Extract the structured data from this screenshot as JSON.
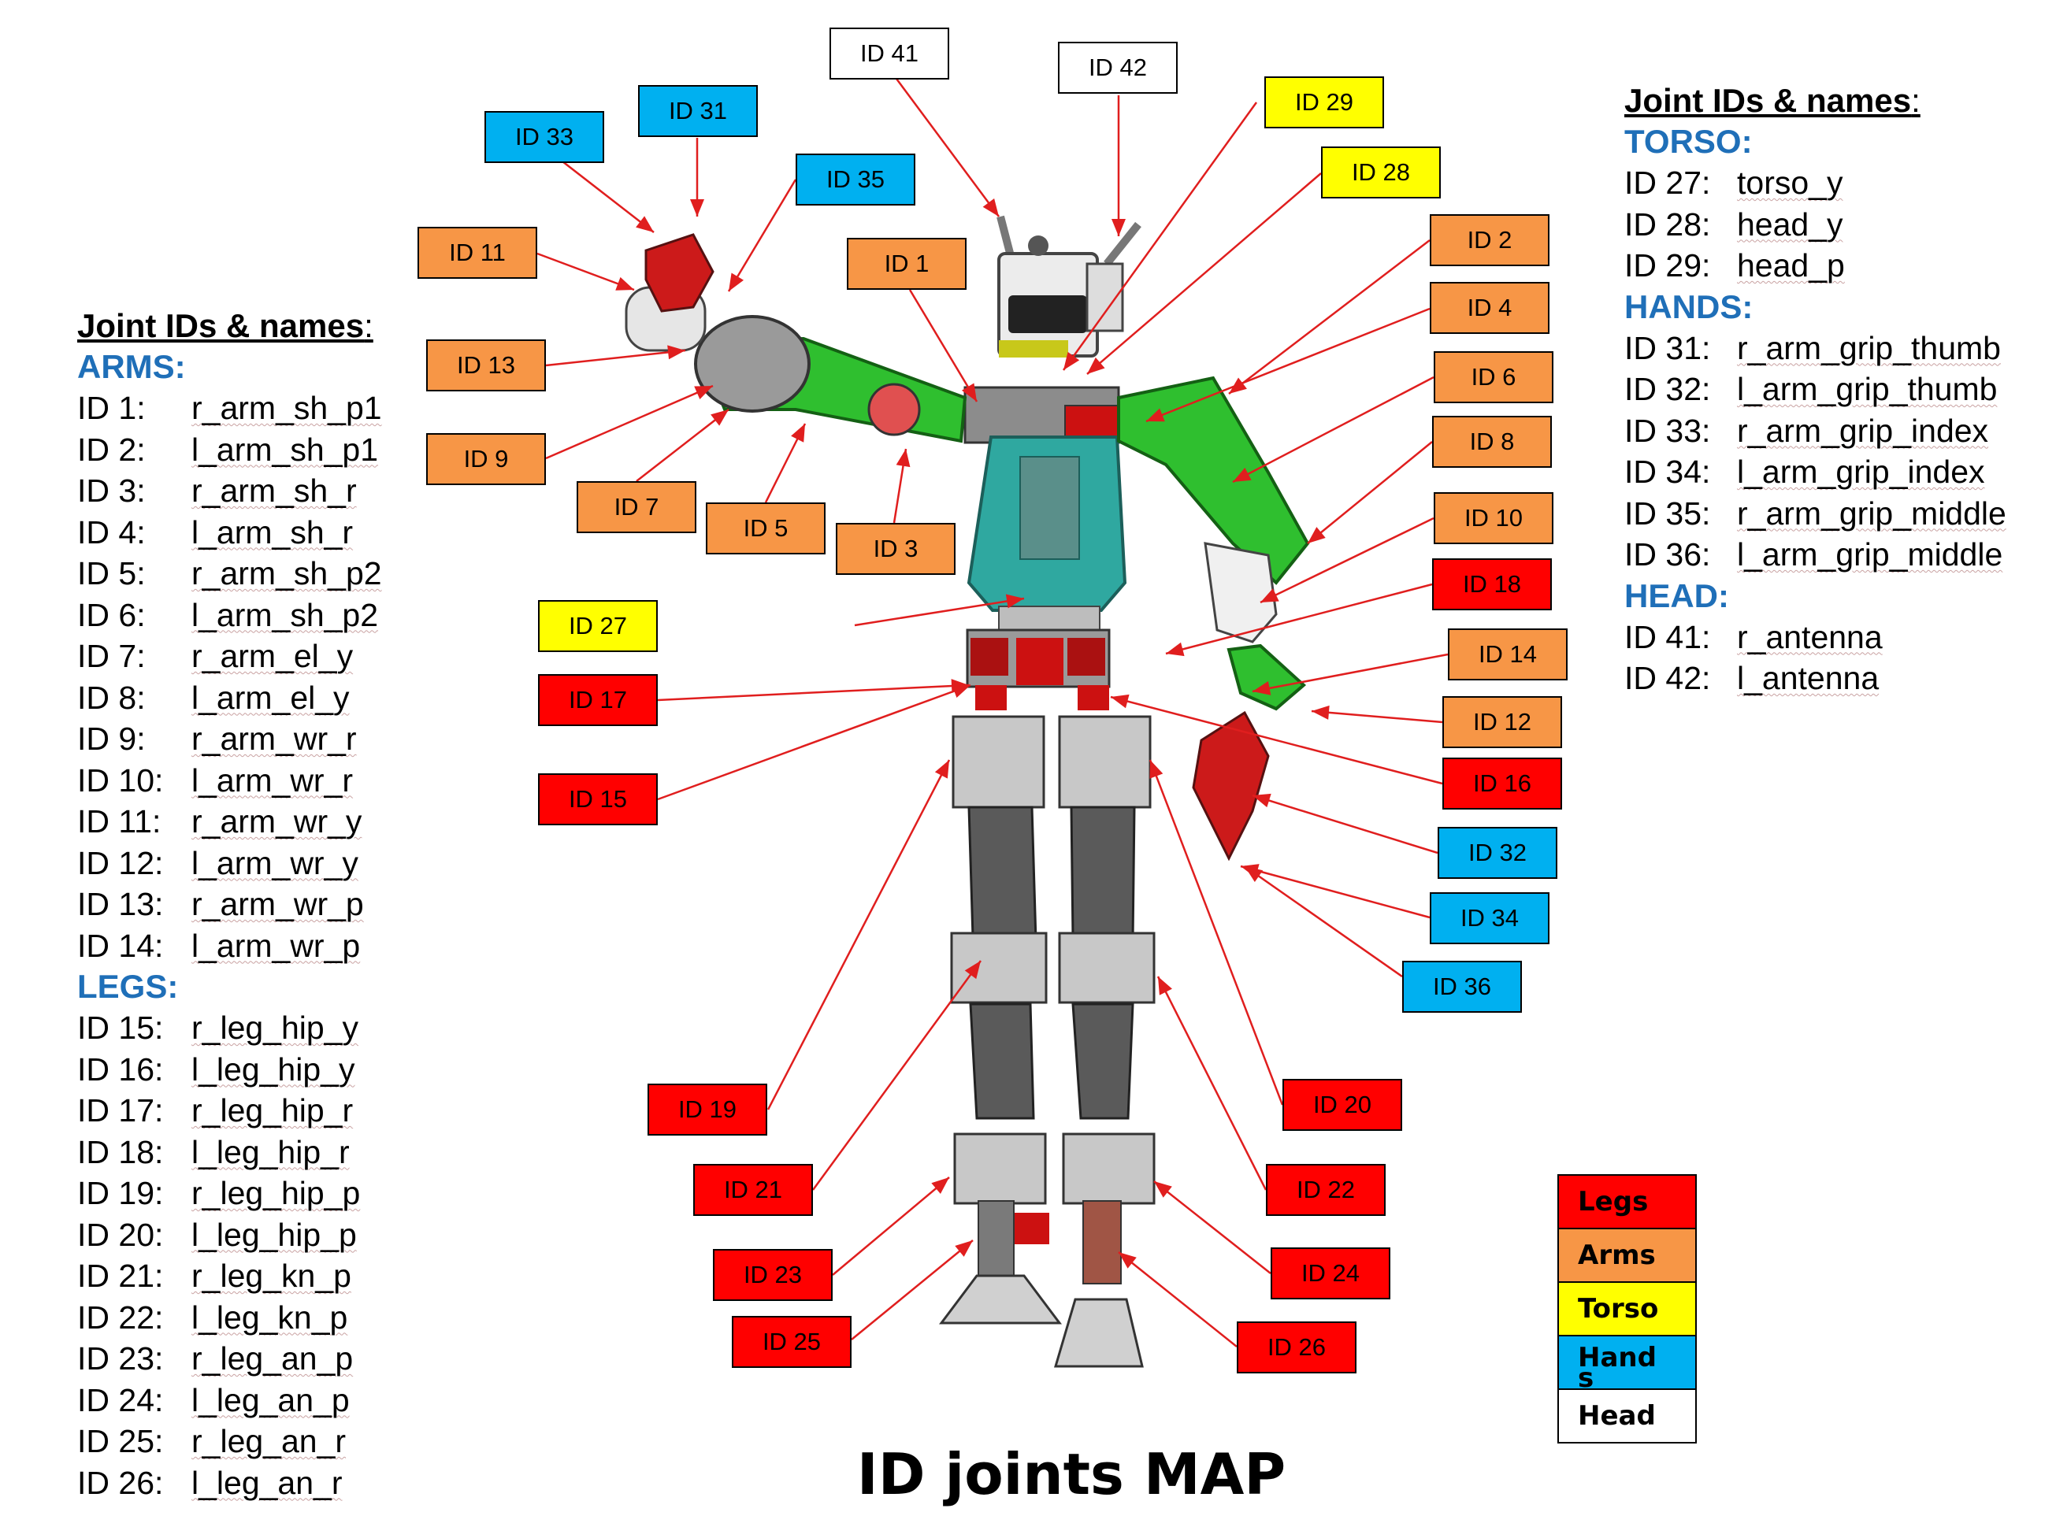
{
  "title": "ID joints MAP",
  "left_legend": {
    "heading": "Joint IDs & names",
    "colon": ":",
    "sections": [
      {
        "name": "ARMS:",
        "rows": [
          {
            "id": "ID 1:",
            "name": "r_arm_sh_p1"
          },
          {
            "id": "ID 2:",
            "name": "l_arm_sh_p1"
          },
          {
            "id": "ID 3:",
            "name": "r_arm_sh_r"
          },
          {
            "id": "ID 4:",
            "name": "l_arm_sh_r"
          },
          {
            "id": "ID 5:",
            "name": "r_arm_sh_p2"
          },
          {
            "id": "ID 6:",
            "name": "l_arm_sh_p2"
          },
          {
            "id": "ID 7:",
            "name": "r_arm_el_y"
          },
          {
            "id": "ID 8:",
            "name": "l_arm_el_y"
          },
          {
            "id": "ID 9:",
            "name": "r_arm_wr_r"
          },
          {
            "id": "ID 10:",
            "name": "l_arm_wr_r"
          },
          {
            "id": "ID 11:",
            "name": "r_arm_wr_y"
          },
          {
            "id": "ID 12:",
            "name": "l_arm_wr_y"
          },
          {
            "id": "ID 13:",
            "name": "r_arm_wr_p"
          },
          {
            "id": "ID 14:",
            "name": "l_arm_wr_p"
          }
        ]
      },
      {
        "name": "LEGS:",
        "rows": [
          {
            "id": "ID 15:",
            "name": "r_leg_hip_y"
          },
          {
            "id": "ID 16:",
            "name": "l_leg_hip_y"
          },
          {
            "id": "ID 17:",
            "name": "r_leg_hip_r"
          },
          {
            "id": "ID 18:",
            "name": "l_leg_hip_r"
          },
          {
            "id": "ID 19:",
            "name": "r_leg_hip_p"
          },
          {
            "id": "ID 20:",
            "name": "l_leg_hip_p"
          },
          {
            "id": "ID 21:",
            "name": "r_leg_kn_p"
          },
          {
            "id": "ID 22:",
            "name": "l_leg_kn_p"
          },
          {
            "id": "ID 23:",
            "name": "r_leg_an_p"
          },
          {
            "id": "ID 24:",
            "name": "l_leg_an_p"
          },
          {
            "id": "ID 25:",
            "name": "r_leg_an_r"
          },
          {
            "id": "ID 26:",
            "name": "l_leg_an_r"
          }
        ]
      }
    ]
  },
  "right_legend": {
    "heading": "Joint IDs & names",
    "colon": ":",
    "sections": [
      {
        "name": "TORSO:",
        "rows": [
          {
            "id": "ID 27:",
            "name": "torso_y"
          },
          {
            "id": "ID 28:",
            "name": "head_y"
          },
          {
            "id": "ID 29:",
            "name": "head_p"
          }
        ]
      },
      {
        "name": "HANDS:",
        "rows": [
          {
            "id": "ID 31:",
            "name": "r_arm_grip_thumb"
          },
          {
            "id": "ID 32:",
            "name": "l_arm_grip_thumb"
          },
          {
            "id": "ID 33:",
            "name": "r_arm_grip_index"
          },
          {
            "id": "ID 34:",
            "name": "l_arm_grip_index"
          },
          {
            "id": "ID 35:",
            "name": "r_arm_grip_middle"
          },
          {
            "id": "ID 36:",
            "name": "l_arm_grip_middle"
          }
        ]
      },
      {
        "name": "HEAD:",
        "rows": [
          {
            "id": "ID 41:",
            "name": "r_antenna"
          },
          {
            "id": "ID 42:",
            "name": "l_antenna"
          }
        ]
      }
    ]
  },
  "categories": [
    {
      "label": "Legs",
      "color": "#ff0000"
    },
    {
      "label": "Arms",
      "color": "#f79646"
    },
    {
      "label": "Torso",
      "color": "#ffff00"
    },
    {
      "label": "Hand\ns",
      "color": "#00b0f0"
    },
    {
      "label": "Head",
      "color": "#ffffff"
    }
  ],
  "colors": {
    "legs": "#ff0000",
    "arms": "#f79646",
    "torso": "#ffff00",
    "hands": "#00b0f0",
    "head": "#ffffff",
    "connector": "#e01e1e",
    "section_heading": "#1f6fb8",
    "robot_body": "#2fa8a0",
    "robot_arm": "#2fbf2f",
    "robot_leg": "#5a5a5a"
  },
  "labels": [
    {
      "text": "ID 41",
      "category": "head"
    },
    {
      "text": "ID 42",
      "category": "head"
    },
    {
      "text": "ID 29",
      "category": "torso"
    },
    {
      "text": "ID 28",
      "category": "torso"
    },
    {
      "text": "ID 27",
      "category": "torso"
    },
    {
      "text": "ID 31",
      "category": "hands"
    },
    {
      "text": "ID 33",
      "category": "hands"
    },
    {
      "text": "ID 35",
      "category": "hands"
    },
    {
      "text": "ID 32",
      "category": "hands"
    },
    {
      "text": "ID 34",
      "category": "hands"
    },
    {
      "text": "ID 36",
      "category": "hands"
    },
    {
      "text": "ID 11",
      "category": "arms"
    },
    {
      "text": "ID 1",
      "category": "arms"
    },
    {
      "text": "ID 13",
      "category": "arms"
    },
    {
      "text": "ID 9",
      "category": "arms"
    },
    {
      "text": "ID 7",
      "category": "arms"
    },
    {
      "text": "ID 5",
      "category": "arms"
    },
    {
      "text": "ID 3",
      "category": "arms"
    },
    {
      "text": "ID 2",
      "category": "arms"
    },
    {
      "text": "ID 4",
      "category": "arms"
    },
    {
      "text": "ID 6",
      "category": "arms"
    },
    {
      "text": "ID 8",
      "category": "arms"
    },
    {
      "text": "ID 10",
      "category": "arms"
    },
    {
      "text": "ID 14",
      "category": "arms"
    },
    {
      "text": "ID 12",
      "category": "arms"
    },
    {
      "text": "ID 18",
      "category": "legs"
    },
    {
      "text": "ID 17",
      "category": "legs"
    },
    {
      "text": "ID 15",
      "category": "legs"
    },
    {
      "text": "ID 16",
      "category": "legs"
    },
    {
      "text": "ID 19",
      "category": "legs"
    },
    {
      "text": "ID 20",
      "category": "legs"
    },
    {
      "text": "ID 21",
      "category": "legs"
    },
    {
      "text": "ID 22",
      "category": "legs"
    },
    {
      "text": "ID 23",
      "category": "legs"
    },
    {
      "text": "ID 24",
      "category": "legs"
    },
    {
      "text": "ID 25",
      "category": "legs"
    },
    {
      "text": "ID 26",
      "category": "legs"
    }
  ]
}
